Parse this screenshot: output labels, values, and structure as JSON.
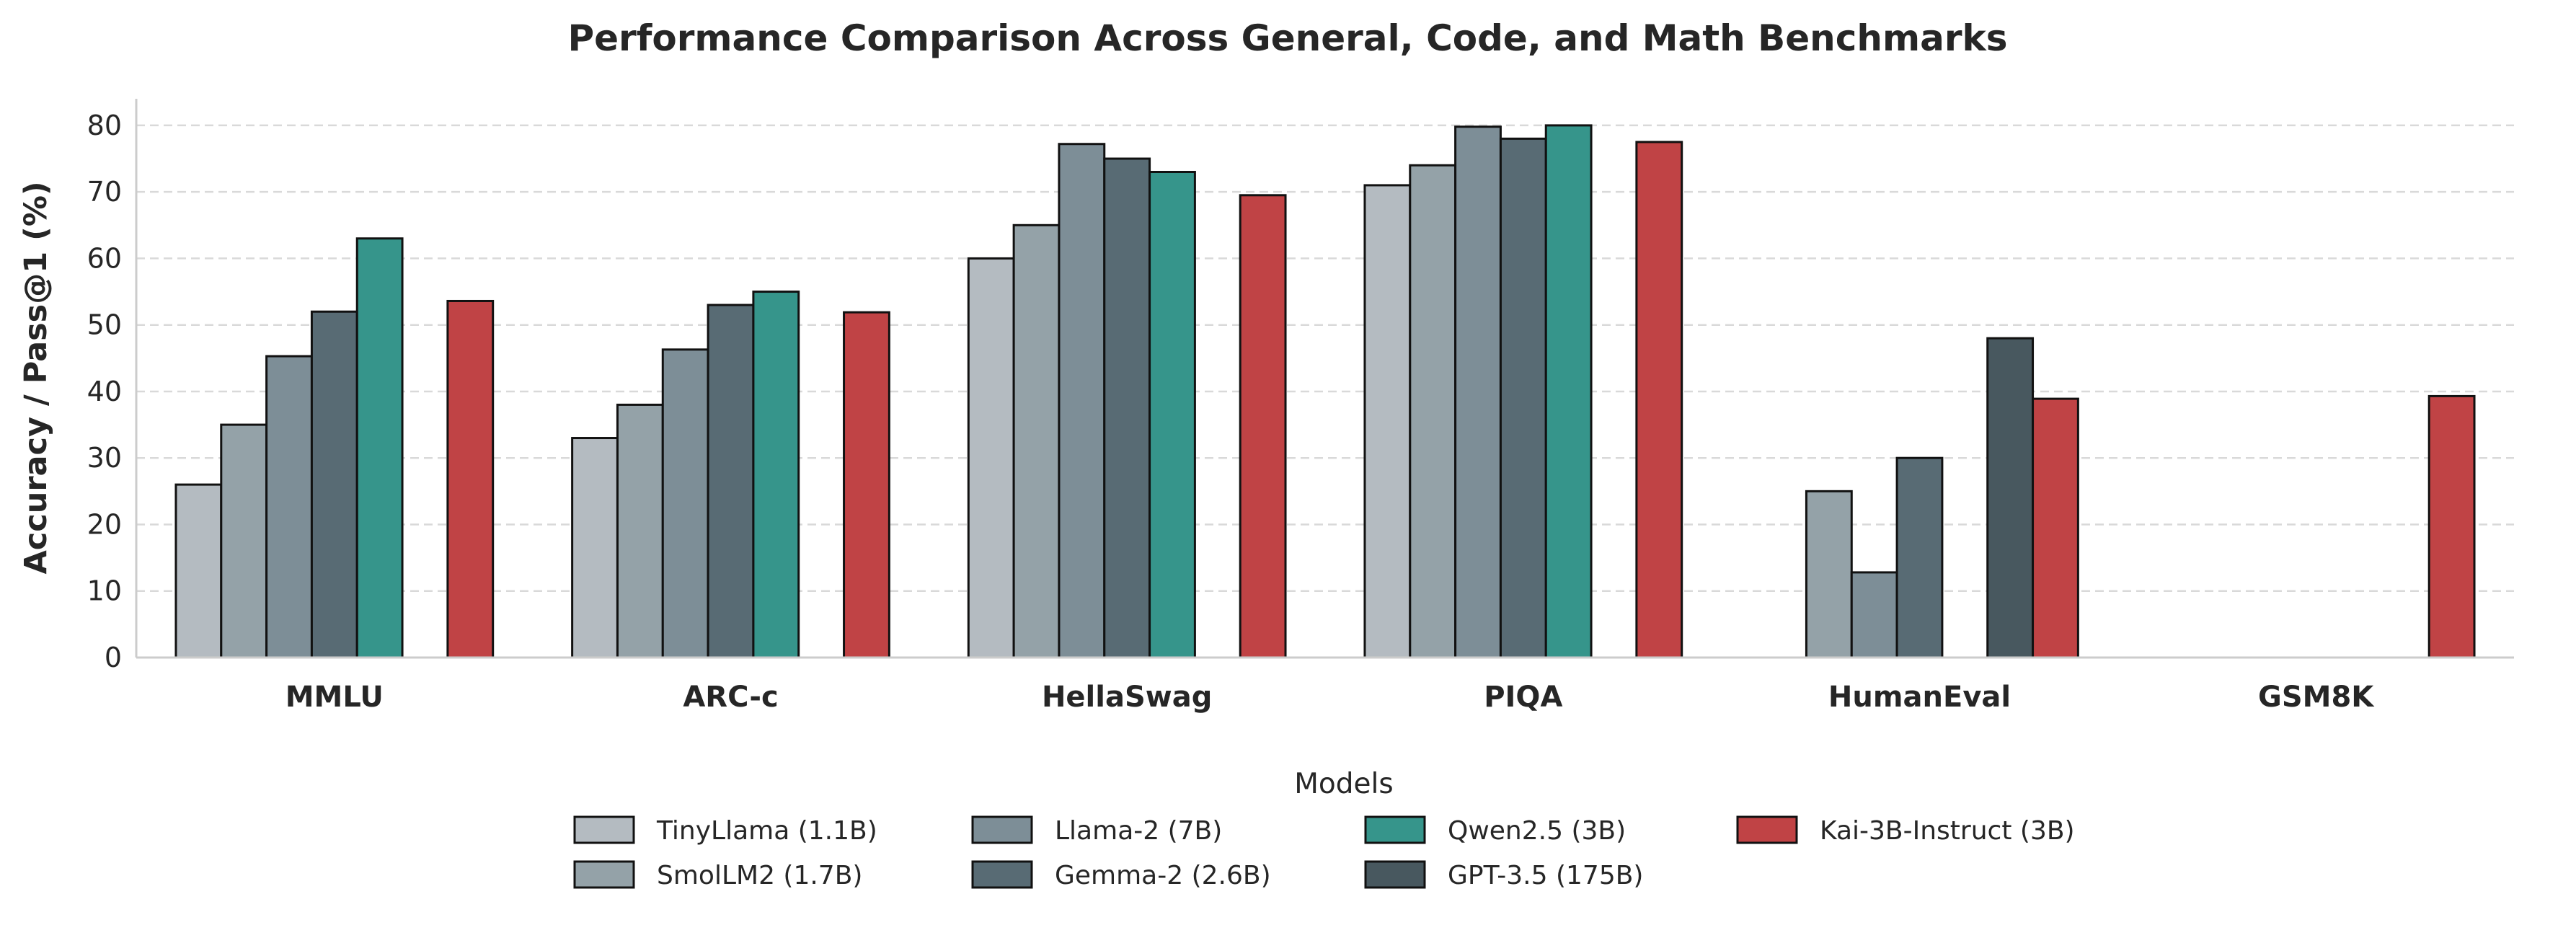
{
  "chart_data": {
    "type": "bar",
    "title": "Performance Comparison Across General, Code, and Math Benchmarks",
    "xlabel": "",
    "ylabel": "Accuracy / Pass@1 (%)",
    "ylim": [
      0,
      84
    ],
    "yticks": [
      0,
      10,
      20,
      30,
      40,
      50,
      60,
      70,
      80
    ],
    "grid": "y, dashed",
    "categories": [
      "MMLU",
      "ARC-c",
      "HellaSwag",
      "PIQA",
      "HumanEval",
      "GSM8K"
    ],
    "legend": {
      "title": "Models",
      "placement": "bottom-center"
    },
    "series": [
      {
        "name": "TinyLlama (1.1B)",
        "color": "#b4bbc1",
        "values": [
          26,
          33,
          60,
          71,
          null,
          null
        ]
      },
      {
        "name": "SmolLM2 (1.7B)",
        "color": "#94a2a8",
        "values": [
          35,
          38,
          65,
          74,
          25,
          null
        ]
      },
      {
        "name": "Llama-2 (7B)",
        "color": "#7d8e97",
        "values": [
          45.3,
          46.3,
          77.2,
          79.8,
          12.8,
          null
        ]
      },
      {
        "name": "Gemma-2 (2.6B)",
        "color": "#586b74",
        "values": [
          52,
          53,
          75,
          78,
          30,
          null
        ]
      },
      {
        "name": "Qwen2.5 (3B)",
        "color": "#36958b",
        "values": [
          63,
          55,
          73,
          80,
          null,
          null
        ]
      },
      {
        "name": "GPT-3.5 (175B)",
        "color": "#48585f",
        "values": [
          null,
          null,
          null,
          null,
          48,
          null
        ]
      },
      {
        "name": "Kai-3B-Instruct (3B)",
        "color": "#c04345",
        "values": [
          53.6,
          51.9,
          69.5,
          77.5,
          38.9,
          39.3
        ]
      }
    ]
  }
}
